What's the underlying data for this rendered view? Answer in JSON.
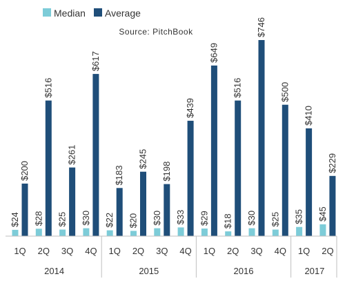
{
  "chart_data": {
    "type": "bar",
    "source": "Source: PitchBook",
    "categories": [
      "1Q",
      "2Q",
      "3Q",
      "4Q",
      "1Q",
      "2Q",
      "3Q",
      "4Q",
      "1Q",
      "2Q",
      "3Q",
      "4Q",
      "1Q",
      "2Q"
    ],
    "years": [
      {
        "label": "2014",
        "count": 4
      },
      {
        "label": "2015",
        "count": 4
      },
      {
        "label": "2016",
        "count": 4
      },
      {
        "label": "2017",
        "count": 2
      }
    ],
    "series": [
      {
        "name": "Median",
        "color": "#7dccd8",
        "values": [
          24,
          28,
          25,
          30,
          22,
          20,
          30,
          33,
          29,
          18,
          30,
          25,
          35,
          45
        ],
        "labels": [
          "$24",
          "$28",
          "$25",
          "$30",
          "$22",
          "$20",
          "$30",
          "$33",
          "$29",
          "$18",
          "$30",
          "$25",
          "$35",
          "$45"
        ]
      },
      {
        "name": "Average",
        "color": "#1f4e79",
        "values": [
          200,
          516,
          261,
          617,
          183,
          245,
          198,
          439,
          649,
          516,
          746,
          500,
          410,
          229
        ],
        "labels": [
          "$200",
          "$516",
          "$261",
          "$617",
          "$183",
          "$245",
          "$198",
          "$439",
          "$649",
          "$516",
          "$746",
          "$500",
          "$410",
          "$229"
        ]
      }
    ],
    "ylim": [
      0,
      746
    ],
    "legend": "top-left",
    "grid": false
  }
}
